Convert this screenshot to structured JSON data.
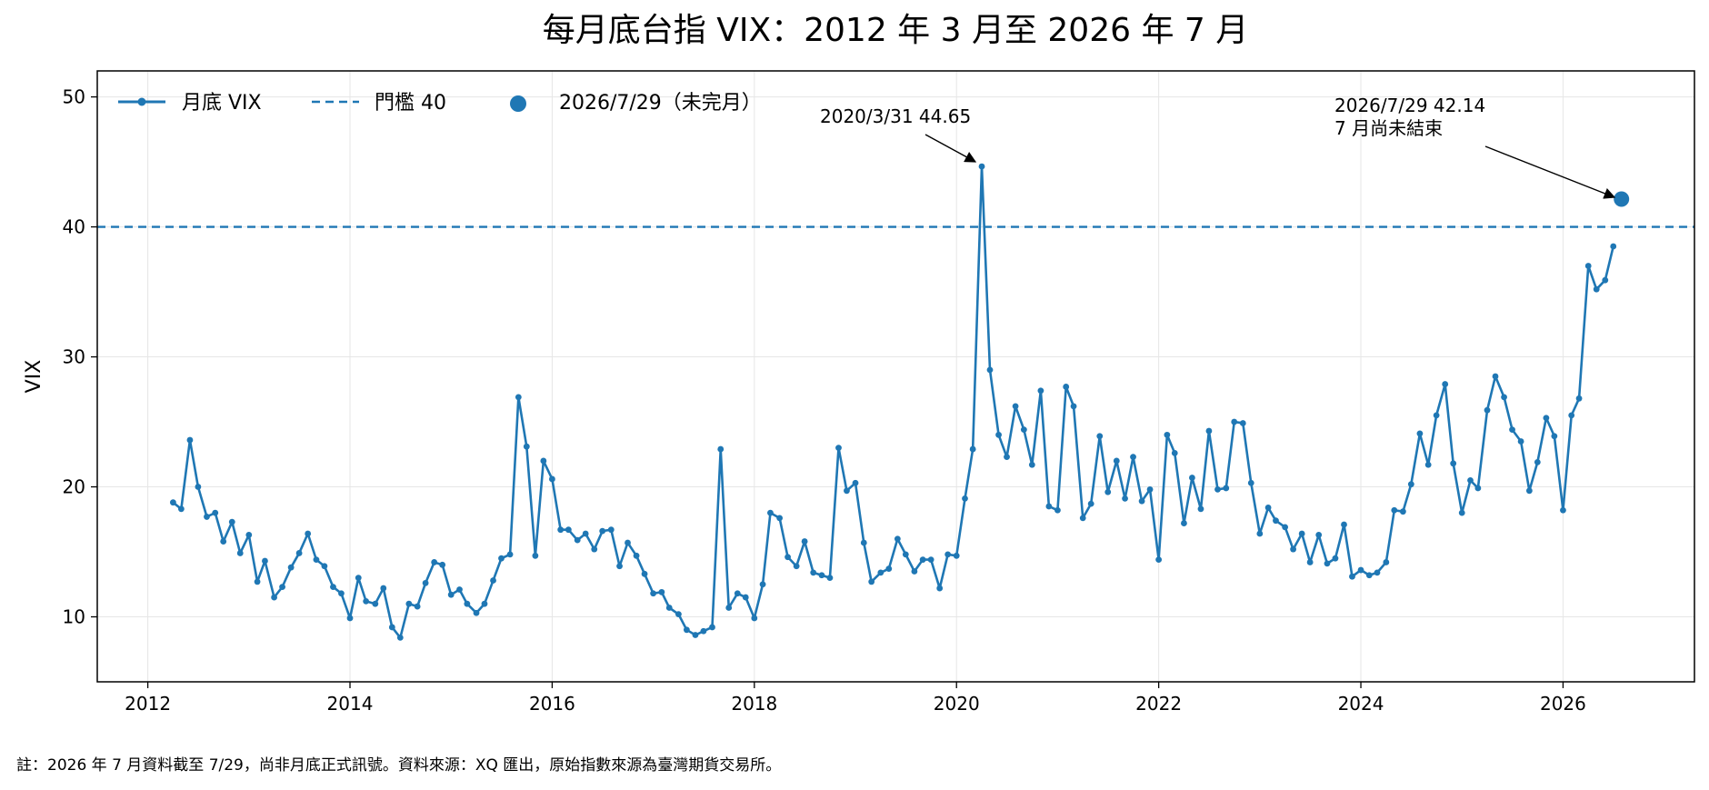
{
  "chart_data": {
    "type": "line",
    "title": "每月底台指 VIX：2012 年 3 月至 2026 年 7 月",
    "xlabel": "",
    "ylabel": "VIX",
    "xlim": [
      2011.5,
      2027.3
    ],
    "ylim": [
      5,
      52
    ],
    "xticks": [
      {
        "value": 2012,
        "label": "2012"
      },
      {
        "value": 2014,
        "label": "2014"
      },
      {
        "value": 2016,
        "label": "2016"
      },
      {
        "value": 2018,
        "label": "2018"
      },
      {
        "value": 2020,
        "label": "2020"
      },
      {
        "value": 2022,
        "label": "2022"
      },
      {
        "value": 2024,
        "label": "2024"
      },
      {
        "value": 2026,
        "label": "2026"
      }
    ],
    "yticks": [
      {
        "value": 10,
        "label": "10"
      },
      {
        "value": 20,
        "label": "20"
      },
      {
        "value": 30,
        "label": "30"
      },
      {
        "value": 40,
        "label": "40"
      },
      {
        "value": 50,
        "label": "50"
      }
    ],
    "grid": true,
    "legend_position": "top-left",
    "colors": {
      "series": "#1f77b4"
    },
    "series": [
      {
        "name": "月底 VIX",
        "start": "2012-03",
        "values": [
          18.8,
          18.3,
          23.6,
          20.0,
          17.7,
          18.0,
          15.8,
          17.3,
          14.9,
          16.3,
          12.7,
          14.3,
          11.5,
          12.3,
          13.8,
          14.9,
          16.4,
          14.4,
          13.9,
          12.3,
          11.8,
          9.9,
          13.0,
          11.2,
          11.0,
          12.2,
          9.2,
          8.4,
          11.0,
          10.8,
          12.6,
          14.2,
          14.0,
          11.7,
          12.1,
          11.0,
          10.3,
          11.0,
          12.8,
          14.5,
          14.8,
          26.9,
          23.1,
          14.7,
          22.0,
          20.6,
          16.7,
          16.7,
          15.9,
          16.4,
          15.2,
          16.6,
          16.7,
          13.9,
          15.7,
          14.7,
          13.3,
          11.8,
          11.9,
          10.7,
          10.2,
          9.0,
          8.6,
          8.9,
          9.2,
          22.9,
          10.7,
          11.8,
          11.5,
          9.9,
          12.5,
          18.0,
          17.6,
          14.6,
          13.9,
          15.8,
          13.4,
          13.2,
          13.0,
          23.0,
          19.7,
          20.3,
          15.7,
          12.7,
          13.4,
          13.7,
          16.0,
          14.8,
          13.5,
          14.4,
          14.4,
          12.2,
          14.8,
          14.7,
          19.1,
          22.9,
          44.65,
          29.0,
          24.0,
          22.3,
          26.2,
          24.4,
          21.7,
          27.4,
          18.5,
          18.2,
          27.7,
          26.2,
          17.6,
          18.7,
          23.9,
          19.6,
          22.0,
          19.1,
          22.3,
          18.9,
          19.8,
          14.4,
          24.0,
          22.6,
          17.2,
          20.7,
          18.3,
          24.3,
          19.8,
          19.9,
          25.0,
          24.9,
          20.3,
          16.4,
          18.4,
          17.4,
          16.9,
          15.2,
          16.4,
          14.2,
          16.3,
          14.1,
          14.5,
          17.1,
          13.1,
          13.6,
          13.2,
          13.4,
          14.2,
          18.2,
          18.1,
          20.2,
          24.1,
          21.7,
          25.5,
          27.9,
          21.8,
          18.0,
          20.5,
          19.9,
          25.9,
          28.5,
          26.9,
          24.4,
          23.5,
          19.7,
          21.9,
          25.3,
          23.9,
          18.2,
          25.5,
          26.8,
          37.0,
          35.2,
          35.9,
          38.5
        ]
      },
      {
        "name": "門檻 40",
        "value": 40
      },
      {
        "name": "2026/7/29（未完月）",
        "x": "2026-07-29",
        "value": 42.14
      }
    ],
    "annotations": [
      {
        "text": "2020/3/31  44.65",
        "x": "2020-03-31",
        "y": 44.65
      },
      {
        "text": "2026/7/29  42.14",
        "x": "2026-07-29",
        "y": 42.14
      },
      {
        "text": "7 月尚未結束",
        "x": "2026-07-29",
        "y": 42.14
      }
    ]
  },
  "footer": {
    "note": "註：2026 年 7 月資料截至 7/29，尚非月底正式訊號。資料來源：XQ 匯出，原始指數來源為臺灣期貨交易所。"
  }
}
